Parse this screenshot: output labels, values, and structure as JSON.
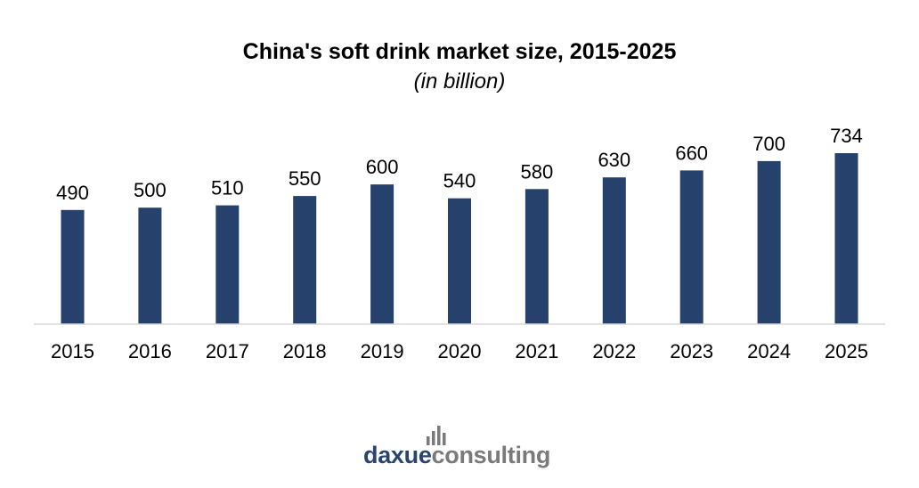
{
  "chart_data": {
    "type": "bar",
    "title": "China's soft drink market size, 2015-2025",
    "subtitle": "(in billion)",
    "categories": [
      "2015",
      "2016",
      "2017",
      "2018",
      "2019",
      "2020",
      "2021",
      "2022",
      "2023",
      "2024",
      "2025"
    ],
    "values": [
      490,
      500,
      510,
      550,
      600,
      540,
      580,
      630,
      660,
      700,
      734
    ],
    "xlabel": "",
    "ylabel": "",
    "ylim": [
      0,
      734
    ],
    "grid": false,
    "legend": "none",
    "data_labels": true,
    "bar_color": "#26426c",
    "axis_color": "#d9d9d9"
  },
  "logo": {
    "part_a": "daxue",
    "part_b": "consulting",
    "icon": "bar-chart-logo-icon",
    "color_a": "#2a4470",
    "color_b": "#7a7a7a"
  }
}
